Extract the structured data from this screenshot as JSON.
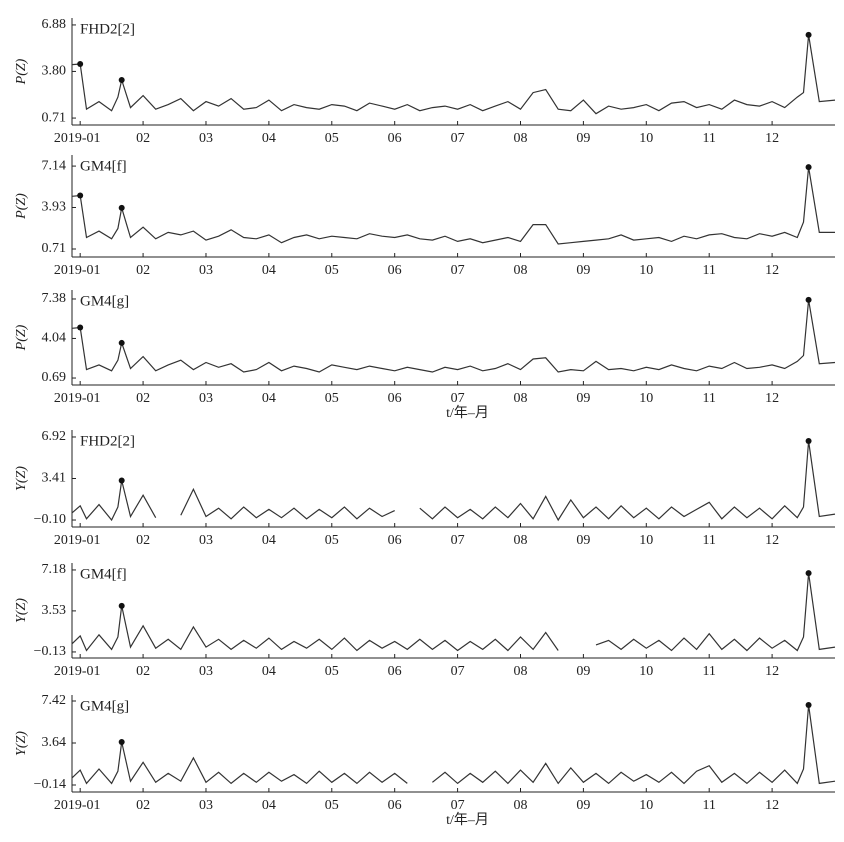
{
  "chart_data": [
    {
      "type": "line",
      "title": "FHD2[2]",
      "ylabel": "P(Z)",
      "color": "#333333",
      "xlim": [
        0.87,
        13
      ],
      "xticks": [
        {
          "value": 1,
          "label": "2019-01"
        },
        {
          "value": 2,
          "label": "02"
        },
        {
          "value": 3,
          "label": "03"
        },
        {
          "value": 4,
          "label": "04"
        },
        {
          "value": 5,
          "label": "05"
        },
        {
          "value": 6,
          "label": "06"
        },
        {
          "value": 7,
          "label": "07"
        },
        {
          "value": 8,
          "label": "08"
        },
        {
          "value": 9,
          "label": "09"
        },
        {
          "value": 10,
          "label": "10"
        },
        {
          "value": 11,
          "label": "11"
        },
        {
          "value": 12,
          "label": "12"
        }
      ],
      "ylim": [
        0.25,
        7.34
      ],
      "yticks": [
        0.71,
        {
          "value": 3.8,
          "label": "3.80"
        },
        6.88
      ],
      "x": [
        0.87,
        1.0,
        1.1,
        1.3,
        1.5,
        1.6,
        1.66,
        1.8,
        2.0,
        2.2,
        2.4,
        2.6,
        2.8,
        3.0,
        3.2,
        3.4,
        3.6,
        3.8,
        4.0,
        4.2,
        4.4,
        4.6,
        4.8,
        5.0,
        5.2,
        5.4,
        5.6,
        5.8,
        6.0,
        6.2,
        6.4,
        6.6,
        6.8,
        7.0,
        7.2,
        7.4,
        7.6,
        7.8,
        8.0,
        8.2,
        8.4,
        8.6,
        8.8,
        9.0,
        9.2,
        9.4,
        9.6,
        9.8,
        10.0,
        10.2,
        10.4,
        10.6,
        10.8,
        11.0,
        11.2,
        11.4,
        11.6,
        11.8,
        12.0,
        12.2,
        12.4,
        12.5,
        12.58,
        12.75,
        13.0
      ],
      "values": [
        4.25,
        4.29,
        1.3,
        1.8,
        1.2,
        2.1,
        3.23,
        1.4,
        2.2,
        1.3,
        1.6,
        2.0,
        1.2,
        1.8,
        1.5,
        2.0,
        1.3,
        1.4,
        1.9,
        1.2,
        1.6,
        1.4,
        1.3,
        1.6,
        1.5,
        1.2,
        1.7,
        1.5,
        1.3,
        1.6,
        1.2,
        1.4,
        1.5,
        1.3,
        1.6,
        1.2,
        1.5,
        1.8,
        1.3,
        2.4,
        2.6,
        1.3,
        1.2,
        1.9,
        1.0,
        1.5,
        1.3,
        1.4,
        1.6,
        1.2,
        1.7,
        1.8,
        1.4,
        1.6,
        1.3,
        1.9,
        1.6,
        1.5,
        1.8,
        1.4,
        2.1,
        2.4,
        6.22,
        1.8,
        1.9
      ]
    },
    {
      "type": "line",
      "title": "GM4[f]",
      "ylabel": "P(Z)",
      "color": "#333333",
      "xlim": [
        0.87,
        13
      ],
      "xticks": [
        {
          "value": 1,
          "label": "2019-01"
        },
        {
          "value": 2,
          "label": "02"
        },
        {
          "value": 3,
          "label": "03"
        },
        {
          "value": 4,
          "label": "04"
        },
        {
          "value": 5,
          "label": "05"
        },
        {
          "value": 6,
          "label": "06"
        },
        {
          "value": 7,
          "label": "07"
        },
        {
          "value": 8,
          "label": "08"
        },
        {
          "value": 9,
          "label": "09"
        },
        {
          "value": 10,
          "label": "10"
        },
        {
          "value": 11,
          "label": "11"
        },
        {
          "value": 12,
          "label": "12"
        }
      ],
      "ylim": [
        0.09,
        8.0
      ],
      "yticks": [
        0.71,
        3.93,
        7.14
      ],
      "x": [
        0.87,
        1.0,
        1.1,
        1.3,
        1.5,
        1.6,
        1.66,
        1.8,
        2.0,
        2.2,
        2.4,
        2.6,
        2.8,
        3.0,
        3.2,
        3.4,
        3.6,
        3.8,
        4.0,
        4.2,
        4.4,
        4.6,
        4.8,
        5.0,
        5.2,
        5.4,
        5.6,
        5.8,
        6.0,
        6.2,
        6.4,
        6.6,
        6.8,
        7.0,
        7.2,
        7.4,
        7.6,
        7.8,
        8.0,
        8.2,
        8.4,
        8.6,
        8.8,
        9.0,
        9.2,
        9.4,
        9.6,
        9.8,
        10.0,
        10.2,
        10.4,
        10.6,
        10.8,
        11.0,
        11.2,
        11.4,
        11.6,
        11.8,
        12.0,
        12.2,
        12.4,
        12.5,
        12.58,
        12.75,
        13.0
      ],
      "values": [
        4.8,
        4.86,
        1.6,
        2.1,
        1.5,
        2.3,
        3.9,
        1.6,
        2.4,
        1.5,
        2.0,
        1.8,
        2.1,
        1.4,
        1.7,
        2.2,
        1.6,
        1.5,
        1.8,
        1.2,
        1.6,
        1.8,
        1.5,
        1.7,
        1.6,
        1.5,
        1.9,
        1.7,
        1.6,
        1.8,
        1.5,
        1.4,
        1.7,
        1.3,
        1.5,
        1.2,
        1.4,
        1.6,
        1.3,
        2.6,
        2.6,
        1.1,
        1.2,
        1.3,
        1.4,
        1.5,
        1.8,
        1.4,
        1.5,
        1.6,
        1.3,
        1.7,
        1.5,
        1.8,
        1.9,
        1.6,
        1.5,
        1.9,
        1.7,
        2.0,
        1.6,
        2.8,
        7.06,
        2.0,
        2.0
      ]
    },
    {
      "type": "line",
      "title": "GM4[g]",
      "ylabel": "P(Z)",
      "xlabel": "t/年–月",
      "color": "#333333",
      "xlim": [
        0.87,
        13
      ],
      "xticks": [
        {
          "value": 1,
          "label": "2019-01"
        },
        {
          "value": 2,
          "label": "02"
        },
        {
          "value": 3,
          "label": "03"
        },
        {
          "value": 4,
          "label": "04"
        },
        {
          "value": 5,
          "label": "05"
        },
        {
          "value": 6,
          "label": "06"
        },
        {
          "value": 7,
          "label": "07"
        },
        {
          "value": 8,
          "label": "08"
        },
        {
          "value": 9,
          "label": "09"
        },
        {
          "value": 10,
          "label": "10"
        },
        {
          "value": 11,
          "label": "11"
        },
        {
          "value": 12,
          "label": "12"
        }
      ],
      "ylim": [
        0.1,
        8.14
      ],
      "yticks": [
        0.69,
        4.04,
        7.38
      ],
      "x": [
        0.87,
        1.0,
        1.1,
        1.3,
        1.5,
        1.6,
        1.66,
        1.8,
        2.0,
        2.2,
        2.4,
        2.6,
        2.8,
        3.0,
        3.2,
        3.4,
        3.6,
        3.8,
        4.0,
        4.2,
        4.4,
        4.6,
        4.8,
        5.0,
        5.2,
        5.4,
        5.6,
        5.8,
        6.0,
        6.2,
        6.4,
        6.6,
        6.8,
        7.0,
        7.2,
        7.4,
        7.6,
        7.8,
        8.0,
        8.2,
        8.4,
        8.6,
        8.8,
        9.0,
        9.2,
        9.4,
        9.6,
        9.8,
        10.0,
        10.2,
        10.4,
        10.6,
        10.8,
        11.0,
        11.2,
        11.4,
        11.6,
        11.8,
        12.0,
        12.2,
        12.4,
        12.5,
        12.58,
        12.75,
        13.0
      ],
      "values": [
        4.9,
        4.97,
        1.4,
        1.8,
        1.3,
        2.2,
        3.66,
        1.5,
        2.5,
        1.3,
        1.8,
        2.2,
        1.4,
        2.0,
        1.6,
        1.9,
        1.2,
        1.4,
        2.0,
        1.3,
        1.7,
        1.5,
        1.2,
        1.8,
        1.6,
        1.4,
        1.7,
        1.5,
        1.3,
        1.6,
        1.4,
        1.2,
        1.6,
        1.4,
        1.7,
        1.3,
        1.5,
        1.9,
        1.4,
        2.3,
        2.4,
        1.2,
        1.4,
        1.3,
        2.1,
        1.4,
        1.5,
        1.3,
        1.6,
        1.4,
        1.8,
        1.5,
        1.3,
        1.7,
        1.5,
        2.0,
        1.5,
        1.6,
        1.8,
        1.5,
        2.1,
        2.6,
        7.3,
        1.9,
        2.0
      ]
    },
    {
      "type": "line",
      "title": "FHD2[2]",
      "ylabel": "Y(Z)",
      "color": "#333333",
      "xlim": [
        0.87,
        13
      ],
      "xticks": [
        {
          "value": 1,
          "label": "2019-01"
        },
        {
          "value": 2,
          "label": "02"
        },
        {
          "value": 3,
          "label": "03"
        },
        {
          "value": 4,
          "label": "04"
        },
        {
          "value": 5,
          "label": "05"
        },
        {
          "value": 6,
          "label": "06"
        },
        {
          "value": 7,
          "label": "07"
        },
        {
          "value": 8,
          "label": "08"
        },
        {
          "value": 9,
          "label": "09"
        },
        {
          "value": 10,
          "label": "10"
        },
        {
          "value": 11,
          "label": "11"
        },
        {
          "value": 12,
          "label": "12"
        }
      ],
      "ylim": [
        -0.69,
        7.51
      ],
      "yticks": [
        {
          "value": -0.1,
          "label": "−0.10"
        },
        3.41,
        6.92
      ],
      "x": [
        0.87,
        1.0,
        1.1,
        1.3,
        1.5,
        1.6,
        1.66,
        1.8,
        2.0,
        2.2,
        2.4,
        2.6,
        2.8,
        3.0,
        3.2,
        3.4,
        3.6,
        3.8,
        4.0,
        4.2,
        4.4,
        4.6,
        4.8,
        5.0,
        5.2,
        5.4,
        5.6,
        5.8,
        6.0,
        6.2,
        6.4,
        6.6,
        6.8,
        7.0,
        7.2,
        7.4,
        7.6,
        7.8,
        8.0,
        8.2,
        8.4,
        8.6,
        8.8,
        9.0,
        9.2,
        9.4,
        9.6,
        9.8,
        10.0,
        10.2,
        10.4,
        10.6,
        10.8,
        11.0,
        11.2,
        11.4,
        11.6,
        11.8,
        12.0,
        12.2,
        12.4,
        12.5,
        12.58,
        12.75,
        13.0
      ],
      "values": [
        0.5,
        1.1,
        0.0,
        1.2,
        -0.1,
        1.0,
        3.24,
        0.2,
        2.0,
        0.1,
        null,
        0.3,
        2.5,
        0.2,
        0.9,
        0.0,
        1.0,
        0.1,
        0.8,
        0.1,
        0.9,
        0.0,
        0.8,
        0.1,
        1.0,
        0.0,
        0.9,
        0.2,
        0.7,
        null,
        0.9,
        0.0,
        1.0,
        0.1,
        0.8,
        0.0,
        1.0,
        0.1,
        1.3,
        0.0,
        1.9,
        -0.1,
        1.6,
        0.1,
        1.0,
        0.0,
        1.1,
        0.1,
        0.9,
        0.0,
        1.0,
        0.2,
        0.8,
        1.4,
        0.0,
        1.0,
        0.1,
        0.9,
        0.0,
        1.1,
        0.1,
        1.0,
        6.58,
        0.2,
        0.4
      ]
    },
    {
      "type": "line",
      "title": "GM4[f]",
      "ylabel": "Y(Z)",
      "color": "#333333",
      "xlim": [
        0.87,
        13
      ],
      "xticks": [
        {
          "value": 1,
          "label": "2019-01"
        },
        {
          "value": 2,
          "label": "02"
        },
        {
          "value": 3,
          "label": "03"
        },
        {
          "value": 4,
          "label": "04"
        },
        {
          "value": 5,
          "label": "05"
        },
        {
          "value": 6,
          "label": "06"
        },
        {
          "value": 7,
          "label": "07"
        },
        {
          "value": 8,
          "label": "08"
        },
        {
          "value": 9,
          "label": "09"
        },
        {
          "value": 10,
          "label": "10"
        },
        {
          "value": 11,
          "label": "11"
        },
        {
          "value": 12,
          "label": "12"
        }
      ],
      "ylim": [
        -0.67,
        7.8
      ],
      "yticks": [
        {
          "value": -0.13,
          "label": "−0.13"
        },
        3.53,
        7.18
      ],
      "x": [
        0.87,
        1.0,
        1.1,
        1.3,
        1.5,
        1.6,
        1.66,
        1.8,
        2.0,
        2.2,
        2.4,
        2.6,
        2.8,
        3.0,
        3.2,
        3.4,
        3.6,
        3.8,
        4.0,
        4.2,
        4.4,
        4.6,
        4.8,
        5.0,
        5.2,
        5.4,
        5.6,
        5.8,
        6.0,
        6.2,
        6.4,
        6.6,
        6.8,
        7.0,
        7.2,
        7.4,
        7.6,
        7.8,
        8.0,
        8.2,
        8.4,
        8.6,
        8.8,
        9.0,
        9.2,
        9.4,
        9.6,
        9.8,
        10.0,
        10.2,
        10.4,
        10.6,
        10.8,
        11.0,
        11.2,
        11.4,
        11.6,
        11.8,
        12.0,
        12.2,
        12.4,
        12.5,
        12.58,
        12.75,
        13.0
      ],
      "values": [
        0.6,
        1.3,
        0.0,
        1.4,
        0.1,
        1.2,
        3.98,
        0.3,
        2.2,
        0.2,
        1.0,
        0.1,
        2.1,
        0.3,
        1.0,
        0.1,
        0.9,
        0.2,
        1.1,
        0.1,
        0.8,
        0.2,
        1.0,
        0.1,
        1.1,
        0.0,
        0.9,
        0.2,
        0.8,
        0.1,
        1.0,
        0.1,
        0.9,
        0.0,
        0.8,
        0.1,
        1.0,
        0.0,
        1.2,
        0.1,
        1.6,
        0.0,
        null,
        null,
        0.5,
        0.9,
        0.1,
        1.0,
        0.2,
        0.9,
        0.0,
        1.1,
        0.1,
        1.5,
        0.1,
        1.0,
        0.0,
        1.1,
        0.2,
        0.9,
        0.0,
        1.2,
        6.9,
        0.1,
        0.3
      ]
    },
    {
      "type": "line",
      "title": "GM4[g]",
      "ylabel": "Y(Z)",
      "xlabel": "t/年–月",
      "color": "#333333",
      "xlim": [
        0.87,
        13
      ],
      "xticks": [
        {
          "value": 1,
          "label": "2019-01"
        },
        {
          "value": 2,
          "label": "02"
        },
        {
          "value": 3,
          "label": "03"
        },
        {
          "value": 4,
          "label": "04"
        },
        {
          "value": 5,
          "label": "05"
        },
        {
          "value": 6,
          "label": "06"
        },
        {
          "value": 7,
          "label": "07"
        },
        {
          "value": 8,
          "label": "08"
        },
        {
          "value": 9,
          "label": "09"
        },
        {
          "value": 10,
          "label": "10"
        },
        {
          "value": 11,
          "label": "11"
        },
        {
          "value": 12,
          "label": "12"
        }
      ],
      "ylim": [
        -0.77,
        7.96
      ],
      "yticks": [
        {
          "value": -0.14,
          "label": "−0.14"
        },
        3.64,
        7.42
      ],
      "x": [
        0.87,
        1.0,
        1.1,
        1.3,
        1.5,
        1.6,
        1.66,
        1.8,
        2.0,
        2.2,
        2.4,
        2.6,
        2.8,
        3.0,
        3.2,
        3.4,
        3.6,
        3.8,
        4.0,
        4.2,
        4.4,
        4.6,
        4.8,
        5.0,
        5.2,
        5.4,
        5.6,
        5.8,
        6.0,
        6.2,
        6.4,
        6.6,
        6.8,
        7.0,
        7.2,
        7.4,
        7.6,
        7.8,
        8.0,
        8.2,
        8.4,
        8.6,
        8.8,
        9.0,
        9.2,
        9.4,
        9.6,
        9.8,
        10.0,
        10.2,
        10.4,
        10.6,
        10.8,
        11.0,
        11.2,
        11.4,
        11.6,
        11.8,
        12.0,
        12.2,
        12.4,
        12.5,
        12.58,
        12.75,
        13.0
      ],
      "values": [
        0.5,
        1.2,
        0.0,
        1.3,
        0.0,
        1.1,
        3.73,
        0.2,
        1.9,
        0.1,
        0.9,
        0.2,
        2.3,
        0.1,
        1.0,
        0.0,
        0.9,
        0.1,
        1.0,
        0.2,
        0.8,
        0.0,
        1.1,
        0.1,
        0.9,
        0.0,
        1.0,
        0.1,
        0.9,
        0.0,
        null,
        0.1,
        1.0,
        0.0,
        0.9,
        0.1,
        1.1,
        0.0,
        1.2,
        0.1,
        1.8,
        0.0,
        1.4,
        0.1,
        0.9,
        0.0,
        1.0,
        0.2,
        0.8,
        0.1,
        1.0,
        0.0,
        1.1,
        1.6,
        0.1,
        0.9,
        0.0,
        1.0,
        0.1,
        1.2,
        0.0,
        1.3,
        7.06,
        0.0,
        0.2
      ]
    }
  ]
}
